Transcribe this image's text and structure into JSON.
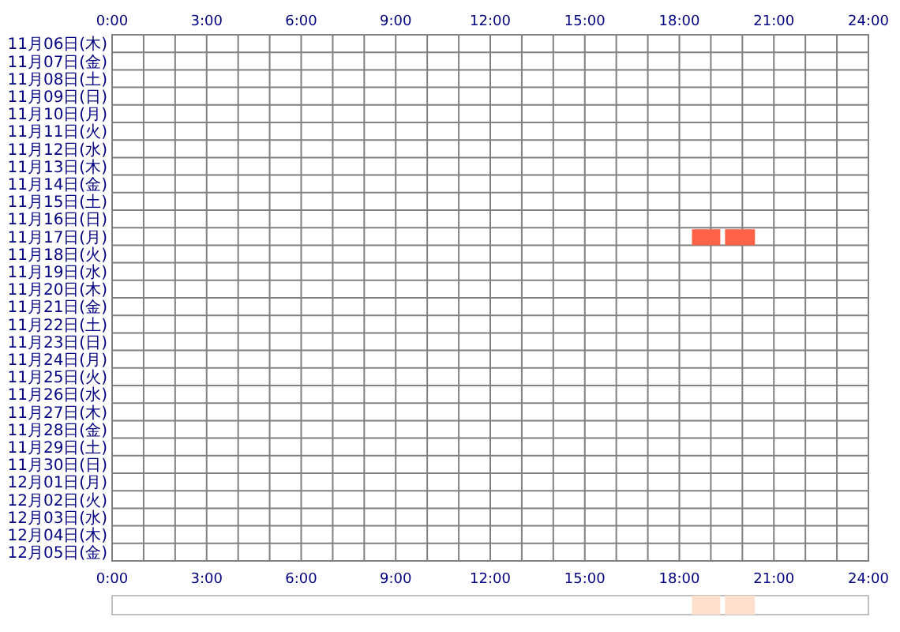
{
  "chart_data": [
    {
      "type": "bar",
      "orientation": "horizontal",
      "grid": true,
      "categories": [
        "11月06日(木)",
        "11月07日(金)",
        "11月08日(土)",
        "11月09日(日)",
        "11月10日(月)",
        "11月11日(火)",
        "11月12日(水)",
        "11月13日(木)",
        "11月14日(金)",
        "11月15日(土)",
        "11月16日(日)",
        "11月17日(月)",
        "11月18日(火)",
        "11月19日(水)",
        "11月20日(木)",
        "11月21日(金)",
        "11月22日(土)",
        "11月23日(日)",
        "11月24日(月)",
        "11月25日(火)",
        "11月26日(水)",
        "11月27日(木)",
        "11月28日(金)",
        "11月29日(土)",
        "11月30日(日)",
        "12月01日(月)",
        "12月02日(火)",
        "12月03日(水)",
        "12月04日(木)",
        "12月05日(金)"
      ],
      "series": [
        {
          "color": "#ff6347",
          "values": [
            null,
            null,
            null,
            null,
            null,
            null,
            null,
            null,
            null,
            null,
            null,
            0.9,
            null,
            null,
            null,
            null,
            null,
            null,
            null,
            null,
            null,
            null,
            null,
            null,
            null,
            null,
            null,
            null,
            null,
            null
          ],
          "base": [
            null,
            null,
            null,
            null,
            null,
            null,
            null,
            null,
            null,
            null,
            null,
            18.4,
            null,
            null,
            null,
            null,
            null,
            null,
            null,
            null,
            null,
            null,
            null,
            null,
            null,
            null,
            null,
            null,
            null,
            null
          ]
        },
        {
          "color": "#ff6347",
          "values": [
            null,
            null,
            null,
            null,
            null,
            null,
            null,
            null,
            null,
            null,
            null,
            0.95,
            null,
            null,
            null,
            null,
            null,
            null,
            null,
            null,
            null,
            null,
            null,
            null,
            null,
            null,
            null,
            null,
            null,
            null
          ],
          "base": [
            null,
            null,
            null,
            null,
            null,
            null,
            null,
            null,
            null,
            null,
            null,
            19.45,
            null,
            null,
            null,
            null,
            null,
            null,
            null,
            null,
            null,
            null,
            null,
            null,
            null,
            null,
            null,
            null,
            null,
            null
          ]
        }
      ],
      "xlim": [
        0,
        24
      ],
      "xticks": [
        {
          "value": 0,
          "label": "0:00"
        },
        {
          "value": 1,
          "label": null
        },
        {
          "value": 2,
          "label": null
        },
        {
          "value": 3,
          "label": "3:00"
        },
        {
          "value": 4,
          "label": null
        },
        {
          "value": 5,
          "label": null
        },
        {
          "value": 6,
          "label": "6:00"
        },
        {
          "value": 7,
          "label": null
        },
        {
          "value": 8,
          "label": null
        },
        {
          "value": 9,
          "label": "9:00"
        },
        {
          "value": 10,
          "label": null
        },
        {
          "value": 11,
          "label": null
        },
        {
          "value": 12,
          "label": "12:00"
        },
        {
          "value": 13,
          "label": null
        },
        {
          "value": 14,
          "label": null
        },
        {
          "value": 15,
          "label": "15:00"
        },
        {
          "value": 16,
          "label": null
        },
        {
          "value": 17,
          "label": null
        },
        {
          "value": 18,
          "label": "18:00"
        },
        {
          "value": 19,
          "label": null
        },
        {
          "value": 20,
          "label": null
        },
        {
          "value": 21,
          "label": "21:00"
        },
        {
          "value": 22,
          "label": null
        },
        {
          "value": 23,
          "label": null
        },
        {
          "value": 24,
          "label": "24:00"
        }
      ],
      "x2lim": [
        0,
        24
      ],
      "x2ticks": [
        {
          "value": 0,
          "label": "0:00"
        },
        {
          "value": 3,
          "label": "3:00"
        },
        {
          "value": 6,
          "label": "6:00"
        },
        {
          "value": 9,
          "label": "9:00"
        },
        {
          "value": 12,
          "label": "12:00"
        },
        {
          "value": 15,
          "label": "15:00"
        },
        {
          "value": 18,
          "label": "18:00"
        },
        {
          "value": 21,
          "label": "21:00"
        },
        {
          "value": 24,
          "label": "24:00"
        }
      ]
    },
    {
      "type": "bar",
      "orientation": "horizontal",
      "categories": [
        null
      ],
      "series": [
        {
          "color": "#ffe0cc",
          "values": [
            0.9
          ],
          "base": [
            18.4
          ]
        },
        {
          "color": "#ffe0cc",
          "values": [
            0.95
          ],
          "base": [
            19.45
          ]
        }
      ],
      "xlim": [
        0,
        24
      ]
    }
  ]
}
